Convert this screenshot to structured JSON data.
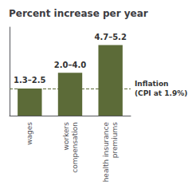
{
  "chart_data": {
    "type": "bar",
    "title": "Percent increase per year",
    "categories": [
      "wages",
      "workers\ncompensation",
      "health insurance\npremiums"
    ],
    "values": [
      1.9,
      3.0,
      4.95
    ],
    "value_labels": [
      "1.3–2.5",
      "2.0–4.0",
      "4.7–5.2"
    ],
    "data_labels": true,
    "color": "#5c6b38",
    "annotations": [
      {
        "y": 1.9,
        "text": "Inflation\n(CPI at 1.9%)"
      }
    ],
    "ylim": [
      0,
      6.2
    ],
    "grid": false,
    "tick_labels": "x"
  }
}
